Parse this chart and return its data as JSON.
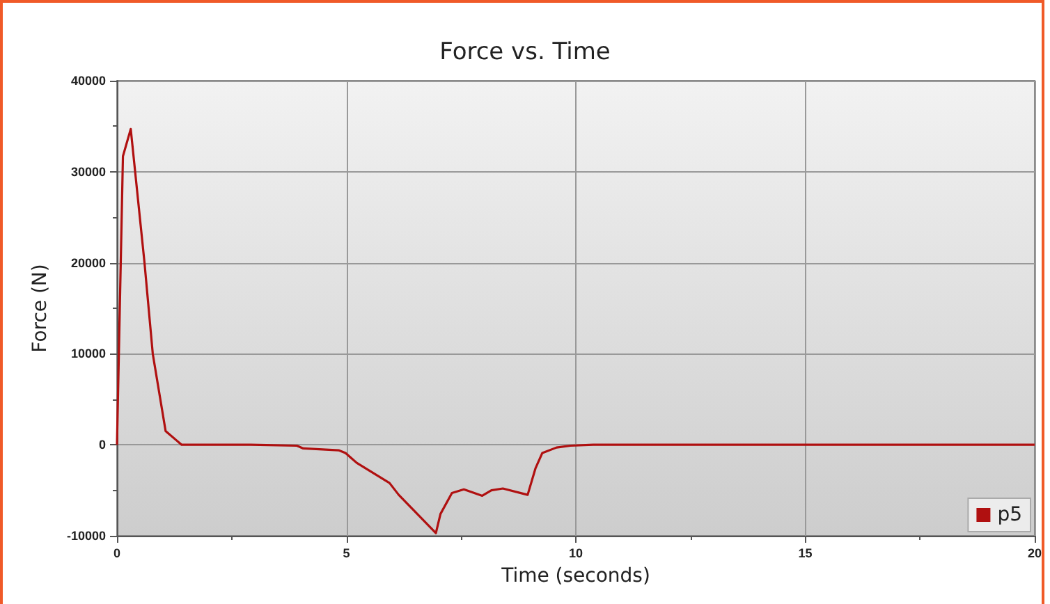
{
  "chart_data": {
    "type": "line",
    "title": "Force vs. Time",
    "xlabel": "Time (seconds)",
    "ylabel": "Force (N)",
    "x": [
      0,
      0.13,
      0.3,
      0.6,
      0.78,
      1.06,
      1.41,
      2.91,
      3.92,
      4.06,
      4.83,
      4.98,
      5.23,
      5.94,
      6.14,
      6.95,
      7.05,
      7.3,
      7.56,
      7.96,
      8.16,
      8.41,
      8.95,
      9.12,
      9.27,
      9.58,
      9.88,
      10.38,
      20
    ],
    "series": [
      {
        "name": "p5",
        "color": "#b01010",
        "values": [
          0,
          31700,
          34700,
          20000,
          10000,
          1500,
          0,
          0,
          -100,
          -400,
          -600,
          -900,
          -2000,
          -4200,
          -5500,
          -9700,
          -7600,
          -5300,
          -4900,
          -5600,
          -5000,
          -4800,
          -5500,
          -2600,
          -900,
          -300,
          -100,
          0,
          0
        ]
      }
    ],
    "xlim": [
      0,
      20
    ],
    "xticks": [
      0,
      5,
      10,
      15,
      20
    ],
    "ylim": [
      -10000,
      40000
    ],
    "yticks": [
      -10000,
      0,
      10000,
      20000,
      30000,
      40000
    ],
    "grid": true,
    "legend": "bottom right",
    "marker": "none",
    "line_style": "solid"
  }
}
